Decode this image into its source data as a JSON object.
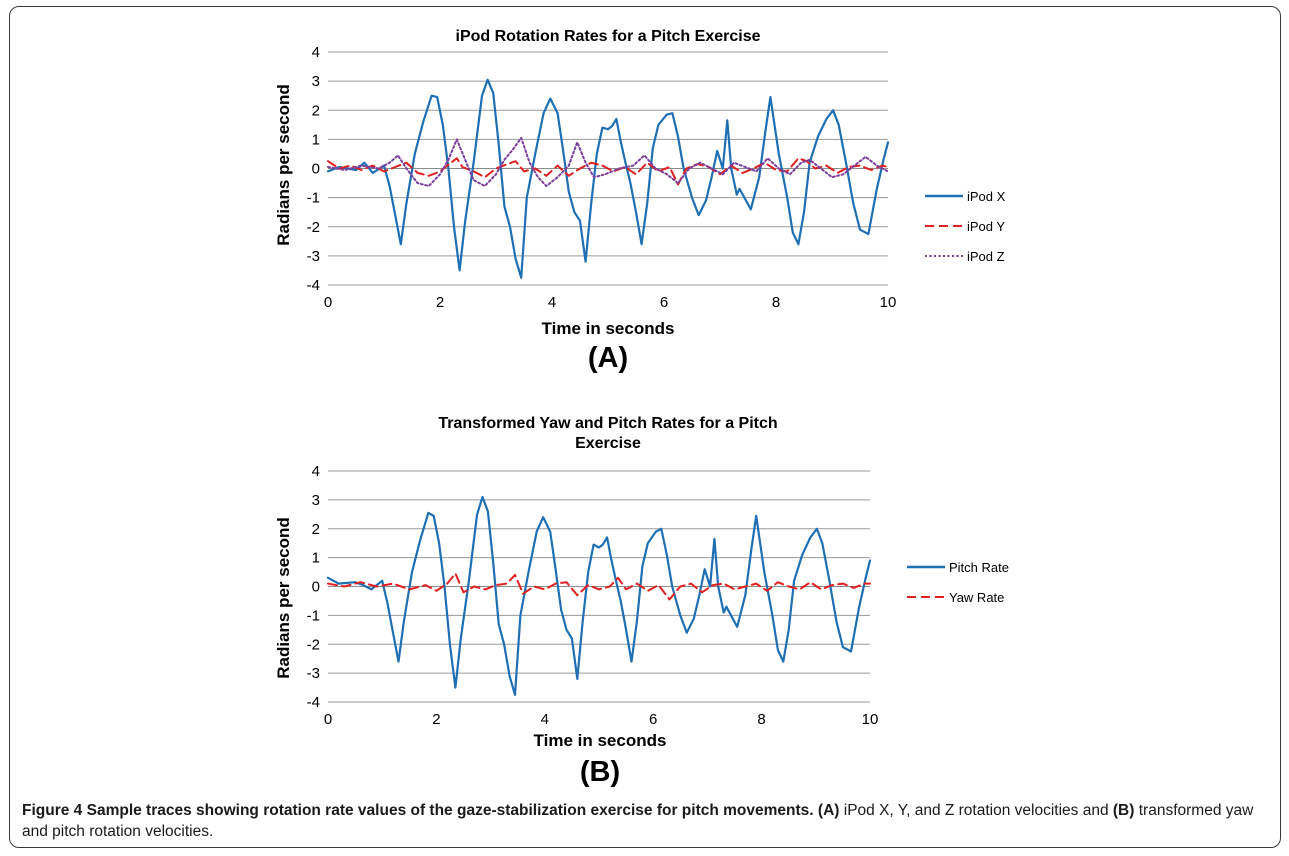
{
  "figure": {
    "caption_label": "Figure 4",
    "caption_title": "Sample traces showing rotation rate values of the gaze-stabilization exercise for pitch movements.",
    "caption_a_tag": "(A)",
    "caption_a_text": "iPod X, Y, and Z rotation velocities and",
    "caption_b_tag": "(B)",
    "caption_b_text": "transformed yaw and pitch rotation velocities."
  },
  "chart_data": [
    {
      "type": "line",
      "panel_tag": "(A)",
      "title": "iPod Rotation Rates for a Pitch Exercise",
      "xlabel": "Time in seconds",
      "ylabel": "Radians per second",
      "xlim": [
        0,
        10
      ],
      "ylim": [
        -4,
        4
      ],
      "xticks": [
        0,
        2,
        4,
        6,
        8,
        10
      ],
      "yticks": [
        -4,
        -3,
        -2,
        -1,
        0,
        1,
        2,
        3,
        4
      ],
      "grid": "horizontal",
      "legend": "right",
      "series": [
        {
          "name": "iPod X",
          "color": "#1f6fb4",
          "style": "solid",
          "x": [
            0,
            0.2,
            0.5,
            0.65,
            0.8,
            1.0,
            1.1,
            1.2,
            1.3,
            1.4,
            1.55,
            1.7,
            1.85,
            1.95,
            2.05,
            2.15,
            2.25,
            2.35,
            2.45,
            2.6,
            2.75,
            2.85,
            2.95,
            3.05,
            3.15,
            3.25,
            3.35,
            3.45,
            3.55,
            3.7,
            3.85,
            3.97,
            4.1,
            4.2,
            4.3,
            4.4,
            4.5,
            4.6,
            4.7,
            4.8,
            4.9,
            5.0,
            5.07,
            5.15,
            5.22,
            5.3,
            5.4,
            5.5,
            5.6,
            5.7,
            5.8,
            5.9,
            6.05,
            6.15,
            6.25,
            6.35,
            6.5,
            6.62,
            6.75,
            6.85,
            6.95,
            7.05,
            7.13,
            7.2,
            7.3,
            7.35,
            7.45,
            7.55,
            7.7,
            7.82,
            7.9,
            8.05,
            8.2,
            8.3,
            8.4,
            8.5,
            8.6,
            8.75,
            8.9,
            9.02,
            9.12,
            9.25,
            9.38,
            9.5,
            9.65,
            9.8,
            9.92,
            10.0
          ],
          "y": [
            -0.1,
            0.05,
            -0.05,
            0.2,
            -0.15,
            0.1,
            -0.6,
            -1.6,
            -2.6,
            -1.2,
            0.5,
            1.6,
            2.5,
            2.45,
            1.5,
            0.0,
            -2.0,
            -3.5,
            -1.8,
            0.2,
            2.5,
            3.05,
            2.6,
            0.8,
            -1.3,
            -2.0,
            -3.1,
            -3.75,
            -1.0,
            0.5,
            1.9,
            2.4,
            1.9,
            0.6,
            -0.8,
            -1.5,
            -1.8,
            -3.2,
            -1.2,
            0.5,
            1.4,
            1.35,
            1.45,
            1.7,
            1.0,
            0.3,
            -0.5,
            -1.5,
            -2.6,
            -1.2,
            0.7,
            1.5,
            1.85,
            1.9,
            1.1,
            0.0,
            -1.0,
            -1.6,
            -1.1,
            -0.3,
            0.6,
            0.0,
            1.65,
            0.0,
            -0.9,
            -0.7,
            -1.05,
            -1.4,
            -0.3,
            1.4,
            2.45,
            0.5,
            -1.0,
            -2.2,
            -2.6,
            -1.5,
            0.2,
            1.1,
            1.7,
            2.0,
            1.5,
            0.2,
            -1.2,
            -2.1,
            -2.25,
            -0.7,
            0.3,
            0.9
          ]
        },
        {
          "name": "iPod Y",
          "color": "#e02020",
          "style": "dashed",
          "x": [
            0,
            0.2,
            0.4,
            0.6,
            0.8,
            1.0,
            1.2,
            1.4,
            1.6,
            1.8,
            2.0,
            2.2,
            2.3,
            2.4,
            2.6,
            2.8,
            3.0,
            3.2,
            3.35,
            3.5,
            3.7,
            3.9,
            4.1,
            4.3,
            4.5,
            4.7,
            4.9,
            5.1,
            5.3,
            5.5,
            5.7,
            5.9,
            6.1,
            6.25,
            6.4,
            6.6,
            6.8,
            7.0,
            7.2,
            7.4,
            7.6,
            7.8,
            8.0,
            8.2,
            8.4,
            8.55,
            8.7,
            8.9,
            9.1,
            9.3,
            9.5,
            9.7,
            9.9,
            10.0
          ],
          "y": [
            0.25,
            0.0,
            0.1,
            -0.05,
            0.1,
            -0.1,
            0.05,
            0.2,
            -0.15,
            -0.25,
            -0.1,
            0.2,
            0.35,
            0.05,
            -0.1,
            -0.3,
            0.0,
            0.15,
            0.25,
            -0.1,
            0.0,
            -0.25,
            0.1,
            -0.25,
            0.0,
            0.2,
            0.1,
            -0.1,
            0.05,
            -0.2,
            0.2,
            -0.1,
            0.05,
            -0.55,
            0.0,
            0.15,
            0.05,
            -0.2,
            0.1,
            -0.15,
            0.0,
            0.2,
            -0.05,
            -0.1,
            0.35,
            0.25,
            0.0,
            0.1,
            -0.15,
            0.05,
            0.1,
            -0.05,
            0.1,
            0.05
          ]
        },
        {
          "name": "iPod Z",
          "color": "#7a3f9c",
          "style": "dotted",
          "x": [
            0,
            0.3,
            0.6,
            0.9,
            1.1,
            1.25,
            1.4,
            1.6,
            1.8,
            2.0,
            2.15,
            2.3,
            2.45,
            2.6,
            2.8,
            3.0,
            3.15,
            3.3,
            3.45,
            3.6,
            3.75,
            3.9,
            4.1,
            4.3,
            4.45,
            4.6,
            4.75,
            4.95,
            5.2,
            5.45,
            5.65,
            5.85,
            6.05,
            6.25,
            6.45,
            6.65,
            6.85,
            7.05,
            7.25,
            7.45,
            7.65,
            7.85,
            8.05,
            8.25,
            8.45,
            8.6,
            8.8,
            9.0,
            9.2,
            9.4,
            9.6,
            9.8,
            10.0
          ],
          "y": [
            0.05,
            -0.05,
            0.1,
            0.0,
            0.2,
            0.45,
            0.0,
            -0.5,
            -0.6,
            -0.2,
            0.3,
            1.0,
            0.3,
            -0.4,
            -0.6,
            -0.2,
            0.3,
            0.65,
            1.05,
            0.2,
            -0.3,
            -0.6,
            -0.3,
            0.1,
            0.9,
            0.2,
            -0.3,
            -0.2,
            0.0,
            0.1,
            0.45,
            0.0,
            -0.2,
            -0.5,
            0.0,
            0.2,
            0.0,
            -0.2,
            0.2,
            0.05,
            -0.1,
            0.35,
            0.0,
            -0.2,
            0.2,
            0.3,
            0.0,
            -0.3,
            -0.2,
            0.1,
            0.4,
            0.1,
            -0.1
          ]
        }
      ]
    },
    {
      "type": "line",
      "panel_tag": "(B)",
      "title": "Transformed Yaw and Pitch Rates for a Pitch Exercise",
      "title_line1": "Transformed Yaw and Pitch Rates for a Pitch",
      "title_line2": "Exercise",
      "xlabel": "Time in seconds",
      "ylabel": "Radians per second",
      "xlim": [
        0,
        10
      ],
      "ylim": [
        -4,
        4
      ],
      "xticks": [
        0,
        2,
        4,
        6,
        8,
        10
      ],
      "yticks": [
        -4,
        -3,
        -2,
        -1,
        0,
        1,
        2,
        3,
        4
      ],
      "grid": "horizontal",
      "legend": "right",
      "series": [
        {
          "name": "Pitch Rate",
          "color": "#1f6fb4",
          "style": "solid",
          "x": [
            0,
            0.2,
            0.5,
            0.65,
            0.8,
            1.0,
            1.1,
            1.2,
            1.3,
            1.4,
            1.55,
            1.7,
            1.85,
            1.95,
            2.05,
            2.15,
            2.25,
            2.35,
            2.45,
            2.6,
            2.75,
            2.85,
            2.95,
            3.05,
            3.15,
            3.25,
            3.35,
            3.45,
            3.55,
            3.7,
            3.85,
            3.97,
            4.1,
            4.2,
            4.3,
            4.4,
            4.5,
            4.6,
            4.7,
            4.8,
            4.9,
            5.0,
            5.07,
            5.15,
            5.22,
            5.3,
            5.4,
            5.5,
            5.6,
            5.7,
            5.8,
            5.9,
            6.05,
            6.15,
            6.25,
            6.35,
            6.5,
            6.62,
            6.75,
            6.85,
            6.95,
            7.05,
            7.13,
            7.2,
            7.3,
            7.35,
            7.45,
            7.55,
            7.7,
            7.82,
            7.9,
            8.05,
            8.2,
            8.3,
            8.4,
            8.5,
            8.6,
            8.75,
            8.9,
            9.02,
            9.12,
            9.25,
            9.38,
            9.5,
            9.65,
            9.8,
            9.92,
            10.0
          ],
          "y": [
            0.3,
            0.1,
            0.15,
            0.05,
            -0.1,
            0.2,
            -0.6,
            -1.6,
            -2.6,
            -1.2,
            0.5,
            1.6,
            2.55,
            2.45,
            1.5,
            0.0,
            -2.0,
            -3.5,
            -1.8,
            0.2,
            2.5,
            3.1,
            2.6,
            0.8,
            -1.3,
            -2.0,
            -3.1,
            -3.75,
            -1.0,
            0.5,
            1.9,
            2.4,
            1.9,
            0.6,
            -0.8,
            -1.5,
            -1.8,
            -3.2,
            -1.2,
            0.5,
            1.45,
            1.35,
            1.45,
            1.7,
            1.0,
            0.3,
            -0.5,
            -1.5,
            -2.6,
            -1.2,
            0.7,
            1.5,
            1.9,
            2.0,
            1.1,
            0.0,
            -1.0,
            -1.6,
            -1.1,
            -0.3,
            0.6,
            0.0,
            1.65,
            0.0,
            -0.9,
            -0.7,
            -1.05,
            -1.4,
            -0.3,
            1.4,
            2.45,
            0.5,
            -1.0,
            -2.2,
            -2.6,
            -1.5,
            0.2,
            1.1,
            1.7,
            2.0,
            1.5,
            0.2,
            -1.2,
            -2.1,
            -2.25,
            -0.7,
            0.3,
            0.9
          ]
        },
        {
          "name": "Yaw Rate",
          "color": "#e02020",
          "style": "dashed",
          "x": [
            0,
            0.3,
            0.6,
            0.9,
            1.2,
            1.5,
            1.8,
            2.0,
            2.2,
            2.35,
            2.5,
            2.7,
            2.9,
            3.1,
            3.3,
            3.45,
            3.6,
            3.8,
            4.0,
            4.2,
            4.4,
            4.6,
            4.8,
            5.0,
            5.2,
            5.35,
            5.5,
            5.7,
            5.9,
            6.1,
            6.3,
            6.5,
            6.7,
            6.9,
            7.1,
            7.3,
            7.5,
            7.7,
            7.9,
            8.1,
            8.3,
            8.5,
            8.7,
            8.9,
            9.1,
            9.3,
            9.5,
            9.7,
            9.9,
            10.0
          ],
          "y": [
            0.1,
            0.0,
            0.15,
            0.0,
            0.1,
            -0.1,
            0.05,
            -0.15,
            0.1,
            0.45,
            -0.2,
            0.0,
            -0.1,
            0.05,
            0.1,
            0.4,
            -0.25,
            0.0,
            -0.1,
            0.1,
            0.15,
            -0.3,
            0.05,
            -0.1,
            0.0,
            0.3,
            -0.1,
            0.1,
            -0.15,
            0.05,
            -0.45,
            0.0,
            0.1,
            -0.2,
            0.05,
            0.1,
            -0.1,
            0.0,
            0.1,
            -0.15,
            0.15,
            0.0,
            -0.1,
            0.15,
            -0.1,
            0.05,
            0.1,
            -0.05,
            0.1,
            0.1
          ]
        }
      ]
    }
  ]
}
